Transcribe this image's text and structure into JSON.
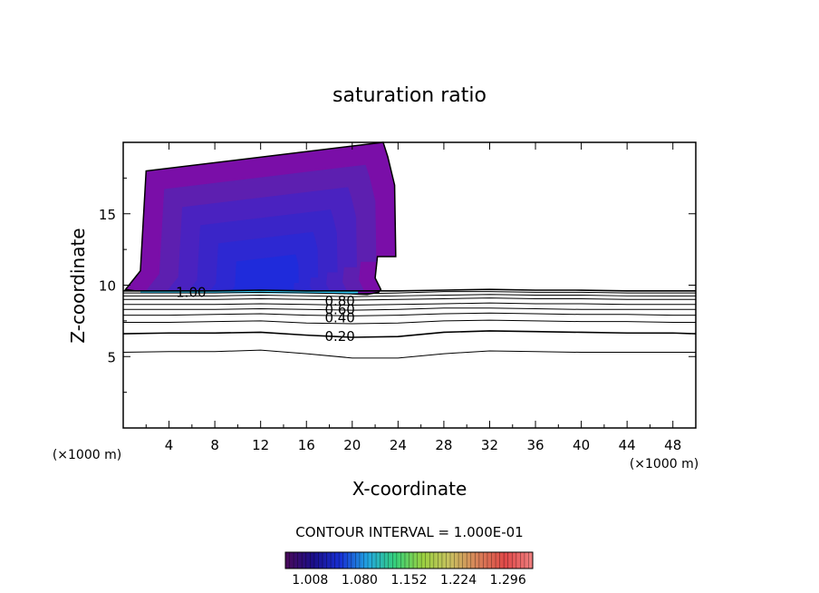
{
  "chart_data": {
    "type": "contour",
    "title": "saturation ratio",
    "xlabel": "X-coordinate",
    "ylabel": "Z-coordinate",
    "x_unit_left": "(×1000 m)",
    "x_unit_right": "(×1000 m)",
    "xlim": [
      0,
      50
    ],
    "ylim": [
      0,
      20
    ],
    "x_ticks": [
      4,
      8,
      12,
      16,
      20,
      24,
      28,
      32,
      36,
      40,
      44,
      48
    ],
    "x_tick_labels": [
      "4",
      "8",
      "12",
      "16",
      "20",
      "24",
      "28",
      "32",
      "36",
      "40",
      "44",
      "48"
    ],
    "y_ticks": [
      5,
      10,
      15
    ],
    "y_tick_labels": [
      "5",
      "10",
      "15"
    ],
    "contour_interval_text": "CONTOUR INTERVAL = 1.000E-01",
    "contour_levels": [
      0.1,
      0.2,
      0.3,
      0.4,
      0.5,
      0.6,
      0.7,
      0.8,
      0.9,
      1.0
    ],
    "contour_labels": [
      {
        "text": "1.00",
        "x": 4.6,
        "z": 9.5
      },
      {
        "text": "0.80",
        "x": 17.6,
        "z": 8.9
      },
      {
        "text": "0.60",
        "x": 17.6,
        "z": 8.3
      },
      {
        "text": "0.40",
        "x": 17.6,
        "z": 7.7
      },
      {
        "text": "0.20",
        "x": 17.6,
        "z": 6.4
      }
    ],
    "contour_lines": [
      {
        "level": 0.1,
        "x": [
          0,
          4,
          8,
          12,
          16,
          20,
          24,
          28,
          32,
          36,
          40,
          44,
          48,
          50
        ],
        "z": [
          5.3,
          5.35,
          5.35,
          5.45,
          5.2,
          4.9,
          4.9,
          5.2,
          5.4,
          5.35,
          5.3,
          5.3,
          5.3,
          5.3
        ]
      },
      {
        "level": 0.2,
        "x": [
          0,
          4,
          8,
          12,
          16,
          20,
          24,
          28,
          32,
          36,
          40,
          44,
          48,
          50
        ],
        "z": [
          6.6,
          6.65,
          6.65,
          6.7,
          6.5,
          6.35,
          6.4,
          6.7,
          6.8,
          6.75,
          6.7,
          6.65,
          6.65,
          6.6
        ]
      },
      {
        "level": 0.3,
        "x": [
          0,
          4,
          8,
          12,
          16,
          20,
          24,
          28,
          32,
          36,
          40,
          44,
          48,
          50
        ],
        "z": [
          7.4,
          7.4,
          7.45,
          7.5,
          7.35,
          7.3,
          7.35,
          7.5,
          7.55,
          7.5,
          7.45,
          7.45,
          7.4,
          7.4
        ]
      },
      {
        "level": 0.4,
        "x": [
          0,
          4,
          8,
          12,
          16,
          20,
          24,
          28,
          32,
          36,
          40,
          44,
          48,
          50
        ],
        "z": [
          7.9,
          7.9,
          7.95,
          8.0,
          7.9,
          7.85,
          7.9,
          8.0,
          8.05,
          8.0,
          7.95,
          7.95,
          7.9,
          7.9
        ]
      },
      {
        "level": 0.5,
        "x": [
          0,
          4,
          8,
          12,
          16,
          20,
          24,
          28,
          32,
          36,
          40,
          44,
          48,
          50
        ],
        "z": [
          8.3,
          8.3,
          8.3,
          8.35,
          8.3,
          8.25,
          8.3,
          8.4,
          8.4,
          8.35,
          8.3,
          8.3,
          8.3,
          8.3
        ]
      },
      {
        "level": 0.6,
        "x": [
          0,
          4,
          8,
          12,
          16,
          20,
          24,
          28,
          32,
          36,
          40,
          44,
          48,
          50
        ],
        "z": [
          8.65,
          8.65,
          8.65,
          8.7,
          8.65,
          8.6,
          8.65,
          8.7,
          8.75,
          8.7,
          8.7,
          8.65,
          8.65,
          8.65
        ]
      },
      {
        "level": 0.7,
        "x": [
          0,
          4,
          8,
          12,
          16,
          20,
          24,
          28,
          32,
          36,
          40,
          44,
          48,
          50
        ],
        "z": [
          9.0,
          9.0,
          9.0,
          9.05,
          9.0,
          8.95,
          9.0,
          9.05,
          9.1,
          9.05,
          9.05,
          9.0,
          9.0,
          9.0
        ]
      },
      {
        "level": 0.8,
        "x": [
          0,
          4,
          8,
          12,
          16,
          20,
          24,
          28,
          32,
          36,
          40,
          44,
          48,
          50
        ],
        "z": [
          9.25,
          9.25,
          9.25,
          9.3,
          9.25,
          9.2,
          9.25,
          9.3,
          9.35,
          9.3,
          9.3,
          9.25,
          9.25,
          9.25
        ]
      },
      {
        "level": 0.9,
        "x": [
          0,
          4,
          8,
          12,
          16,
          20,
          24,
          28,
          32,
          36,
          40,
          44,
          48,
          50
        ],
        "z": [
          9.45,
          9.45,
          9.45,
          9.5,
          9.45,
          9.4,
          9.45,
          9.55,
          9.55,
          9.5,
          9.5,
          9.45,
          9.45,
          9.45
        ]
      },
      {
        "level": 1.0,
        "x": [
          0,
          4,
          8,
          12,
          16,
          20,
          24,
          28,
          32,
          36,
          40,
          44,
          48,
          50
        ],
        "z": [
          9.6,
          9.6,
          9.6,
          9.65,
          9.6,
          9.6,
          9.6,
          9.65,
          9.7,
          9.65,
          9.65,
          9.6,
          9.6,
          9.6
        ]
      }
    ],
    "supersaturated_region": {
      "x": [
        0.2,
        1.5,
        2.0,
        22.7,
        23.1,
        23.7,
        23.8,
        22.2,
        22.0,
        22.5,
        22.3,
        21.3,
        15.0,
        1.0,
        0.2
      ],
      "z": [
        9.7,
        11.0,
        18.0,
        20.0,
        19.0,
        17.0,
        12.0,
        12.0,
        10.5,
        9.7,
        9.5,
        9.35,
        9.55,
        9.6,
        9.7
      ],
      "fill_levels": [
        {
          "value": 1.008,
          "color": "#7a0ea8"
        },
        {
          "value": 1.05,
          "color": "#5d1fb0"
        },
        {
          "value": 1.08,
          "color": "#4a22c0"
        },
        {
          "value": 1.12,
          "color": "#3a25c8"
        },
        {
          "value": 1.152,
          "color": "#2d28d2"
        },
        {
          "value": 1.2,
          "color": "#1f2bdb"
        },
        {
          "value": 1.296,
          "color": "#33c6f2"
        }
      ]
    },
    "colorbar": {
      "tick_labels": [
        "1.008",
        "1.080",
        "1.152",
        "1.224",
        "1.296"
      ],
      "min": 0.972,
      "max": 1.332,
      "colors": [
        "#4a0a5a",
        "#1b0e88",
        "#1730d4",
        "#22a6e0",
        "#35d07a",
        "#9ad040",
        "#c9c060",
        "#d88058",
        "#e04848",
        "#f08080"
      ]
    }
  }
}
